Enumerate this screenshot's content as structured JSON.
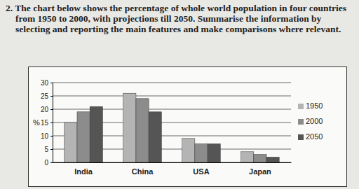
{
  "chart_data": {
    "type": "bar",
    "title": "2. The chart below shows the percentage of whole world population in four countries from 1950 to 2000, with projections till 2050. Summarise the information by selecting and reporting the main features and make comparisons where relevant.",
    "ylabel": "%",
    "categories": [
      "India",
      "China",
      "USA",
      "Japan"
    ],
    "series": [
      {
        "name": "1950",
        "color": "#b4b4b4",
        "values": [
          15,
          26,
          9,
          4
        ]
      },
      {
        "name": "2000",
        "color": "#8c8c8c",
        "values": [
          19,
          24,
          7,
          3
        ]
      },
      {
        "name": "2050",
        "color": "#555555",
        "values": [
          21,
          19,
          7,
          2
        ]
      }
    ],
    "ylim": [
      0,
      30
    ],
    "yticks": [
      0,
      5,
      10,
      15,
      20,
      25,
      30
    ],
    "grid": true,
    "legend": "right"
  }
}
